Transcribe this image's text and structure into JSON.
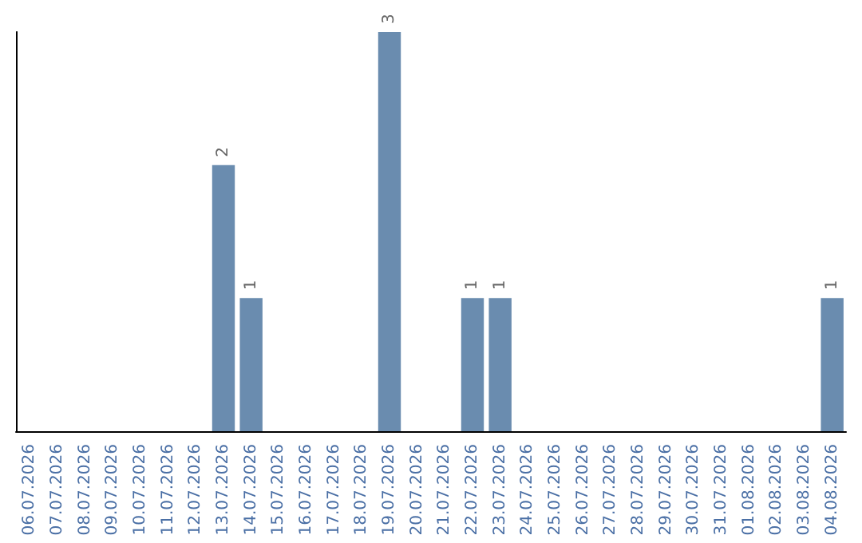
{
  "chart_data": {
    "type": "bar",
    "categories": [
      "06.07.2026",
      "07.07.2026",
      "08.07.2026",
      "09.07.2026",
      "10.07.2026",
      "11.07.2026",
      "12.07.2026",
      "13.07.2026",
      "14.07.2026",
      "15.07.2026",
      "16.07.2026",
      "17.07.2026",
      "18.07.2026",
      "19.07.2026",
      "20.07.2026",
      "21.07.2026",
      "22.07.2026",
      "23.07.2026",
      "24.07.2026",
      "25.07.2026",
      "26.07.2026",
      "27.07.2026",
      "28.07.2026",
      "29.07.2026",
      "30.07.2026",
      "31.07.2026",
      "01.08.2026",
      "02.08.2026",
      "03.08.2026",
      "04.08.2026"
    ],
    "values": [
      0,
      0,
      0,
      0,
      0,
      0,
      0,
      2,
      1,
      0,
      0,
      0,
      0,
      3,
      0,
      0,
      1,
      1,
      0,
      0,
      0,
      0,
      0,
      0,
      0,
      0,
      0,
      0,
      0,
      1
    ],
    "value_labels": [
      null,
      null,
      null,
      null,
      null,
      null,
      null,
      "2",
      "1",
      null,
      null,
      null,
      null,
      "3",
      null,
      null,
      "1",
      "1",
      null,
      null,
      null,
      null,
      null,
      null,
      null,
      null,
      null,
      null,
      null,
      "1"
    ],
    "color": "#6a8caf",
    "grid": false,
    "tick_labels": "x"
  }
}
